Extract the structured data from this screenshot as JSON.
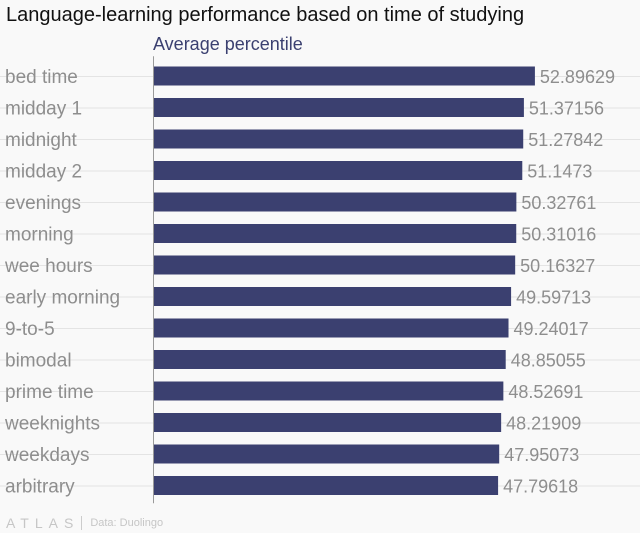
{
  "header": {
    "title": "Language-learning performance based on time of studying",
    "legend": "Average percentile"
  },
  "colors": {
    "bar": "#3b4070",
    "label": "#8e8e8e",
    "grid": "#e4e4e4",
    "axis": "#9a9a9a"
  },
  "footer": {
    "brand": "ATLAS",
    "source": "Data: Duolingo"
  },
  "chart_data": {
    "type": "bar",
    "orientation": "horizontal",
    "title": "Language-learning performance based on time of studying",
    "series": [
      {
        "name": "Average percentile",
        "values": [
          52.89629,
          51.37156,
          51.27842,
          51.1473,
          50.32761,
          50.31016,
          50.16327,
          49.59713,
          49.24017,
          48.85055,
          48.52691,
          48.21909,
          47.95073,
          47.79618
        ]
      }
    ],
    "categories": [
      "bed time",
      "midday 1",
      "midnight",
      "midday 2",
      "evenings",
      "morning",
      "wee hours",
      "early morning",
      "9-to-5",
      "bimodal",
      "prime time",
      "weeknights",
      "weekdays",
      "arbitrary"
    ],
    "value_labels": [
      "52.89629",
      "51.37156",
      "51.27842",
      "51.1473",
      "50.32761",
      "50.31016",
      "50.16327",
      "49.59713",
      "49.24017",
      "48.85055",
      "48.52691",
      "48.21909",
      "47.95073",
      "47.79618"
    ],
    "xlim": [
      0,
      57.5
    ],
    "grid": true,
    "xlabel": "",
    "ylabel": ""
  }
}
